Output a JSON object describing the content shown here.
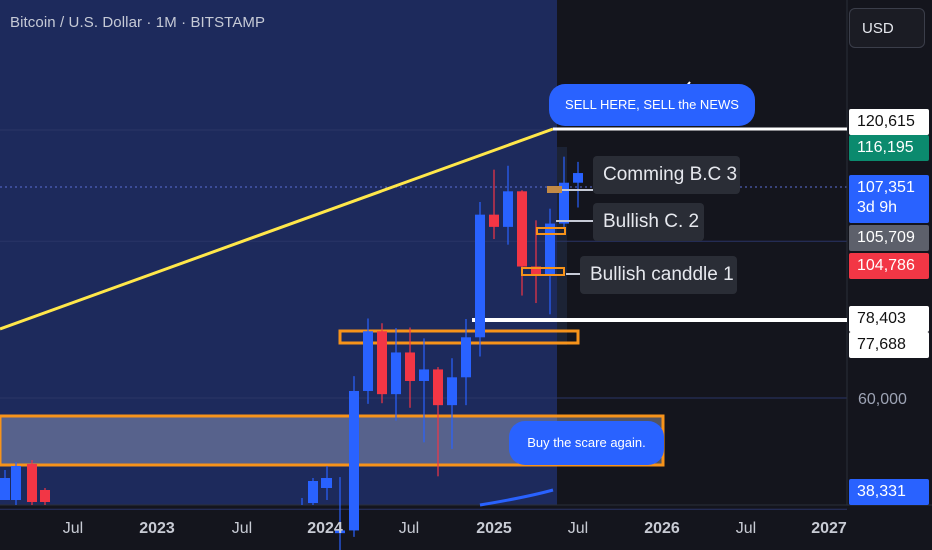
{
  "header": {
    "title": "Bitcoin / U.S. Dollar · 1M · BITSTAMP"
  },
  "currency_button": {
    "label": "USD"
  },
  "price_tags": [
    {
      "label": "120,615",
      "bg": "#ffffff",
      "fg": "#111111"
    },
    {
      "label": "116,195",
      "bg": "#0b8a6e",
      "fg": "#ffffff"
    },
    {
      "label": "107,351",
      "sub": "3d 9h",
      "bg": "#2962ff",
      "fg": "#ffffff"
    },
    {
      "label": "105,709",
      "bg": "#5d606b",
      "fg": "#ffffff"
    },
    {
      "label": "104,786",
      "bg": "#f23645",
      "fg": "#ffffff"
    },
    {
      "label": "78,403",
      "bg": "#ffffff",
      "fg": "#111111"
    },
    {
      "label": "77,688",
      "bg": "#ffffff",
      "fg": "#111111"
    },
    {
      "label": "38,331",
      "bg": "#2962ff",
      "fg": "#ffffff"
    }
  ],
  "axis_plain": {
    "y60000": "60,000"
  },
  "annotations": {
    "sell": "SELL HERE, SELL the NEWS",
    "bc3": "Comming B.C 3",
    "bc2": "Bullish C. 2",
    "bc1": "Bullish canddle 1",
    "buy": "Buy the scare again."
  },
  "x_axis": [
    {
      "label": "Jul",
      "bold": false
    },
    {
      "label": "2023",
      "bold": true
    },
    {
      "label": "Jul",
      "bold": false
    },
    {
      "label": "2024",
      "bold": true
    },
    {
      "label": "Jul",
      "bold": false
    },
    {
      "label": "2025",
      "bold": true
    },
    {
      "label": "Jul",
      "bold": false
    },
    {
      "label": "2026",
      "bold": true
    },
    {
      "label": "Jul",
      "bold": false
    },
    {
      "label": "2027",
      "bold": true
    }
  ],
  "colors": {
    "up": "#2962ff",
    "down": "#f23645",
    "zone": "#f7931a",
    "trend": "#ffe74a",
    "highlight_bg": "#1d2a5c"
  },
  "chart_data": {
    "type": "candlestick",
    "interval": "1M",
    "symbol": "Bitcoin / U.S. Dollar",
    "exchange": "BITSTAMP",
    "y_scale": "log",
    "candles": [
      {
        "date": "2024-01",
        "o": 42300,
        "h": 48900,
        "l": 38600,
        "c": 42600
      },
      {
        "date": "2024-02",
        "o": 42600,
        "h": 63500,
        "l": 41900,
        "c": 61100
      },
      {
        "date": "2024-03",
        "o": 61100,
        "h": 73700,
        "l": 59100,
        "c": 71300
      },
      {
        "date": "2024-04",
        "o": 71300,
        "h": 72800,
        "l": 59200,
        "c": 60600
      },
      {
        "date": "2024-05",
        "o": 60600,
        "h": 71900,
        "l": 56600,
        "c": 67500
      },
      {
        "date": "2024-06",
        "o": 67500,
        "h": 72000,
        "l": 58500,
        "c": 62700
      },
      {
        "date": "2024-07",
        "o": 62700,
        "h": 70000,
        "l": 53500,
        "c": 64600
      },
      {
        "date": "2024-08",
        "o": 64600,
        "h": 65000,
        "l": 49000,
        "c": 58900
      },
      {
        "date": "2024-09",
        "o": 58900,
        "h": 66500,
        "l": 52600,
        "c": 63300
      },
      {
        "date": "2024-10",
        "o": 63300,
        "h": 73600,
        "l": 58900,
        "c": 70200
      },
      {
        "date": "2024-11",
        "o": 70200,
        "h": 99600,
        "l": 66800,
        "c": 96400
      },
      {
        "date": "2024-12",
        "o": 96400,
        "h": 108300,
        "l": 90500,
        "c": 93400
      },
      {
        "date": "2025-01",
        "o": 93400,
        "h": 109400,
        "l": 89200,
        "c": 102400
      },
      {
        "date": "2025-02",
        "o": 102400,
        "h": 102700,
        "l": 78200,
        "c": 84300
      },
      {
        "date": "2025-03",
        "o": 84300,
        "h": 95000,
        "l": 76700,
        "c": 82500
      },
      {
        "date": "2025-04",
        "o": 82500,
        "h": 97900,
        "l": 74500,
        "c": 94200
      },
      {
        "date": "2025-05",
        "o": 94200,
        "h": 112000,
        "l": 93300,
        "c": 104700
      },
      {
        "date": "2025-06",
        "o": 104700,
        "h": 110500,
        "l": 98200,
        "c": 107351
      }
    ],
    "horizontal_levels": [
      120615,
      78403
    ],
    "price_labels": [
      "120,615",
      "116,195",
      "107,351",
      "105,709",
      "104,786",
      "78,403",
      "77,688",
      "60,000",
      "38,331"
    ],
    "zones": [
      {
        "label": "",
        "low": 77688,
        "high": 80500
      },
      {
        "label": "Buy the scare again.",
        "low": 42800,
        "high": 52000
      }
    ],
    "annotations": [
      "SELL HERE, SELL the NEWS",
      "Comming B.C 3",
      "Bullish C. 2",
      "Bullish canddle 1",
      "Buy the scare again."
    ],
    "x_tick_labels": [
      "Jul",
      "2023",
      "Jul",
      "2024",
      "Jul",
      "2025",
      "Jul",
      "2026",
      "Jul",
      "2027"
    ]
  }
}
